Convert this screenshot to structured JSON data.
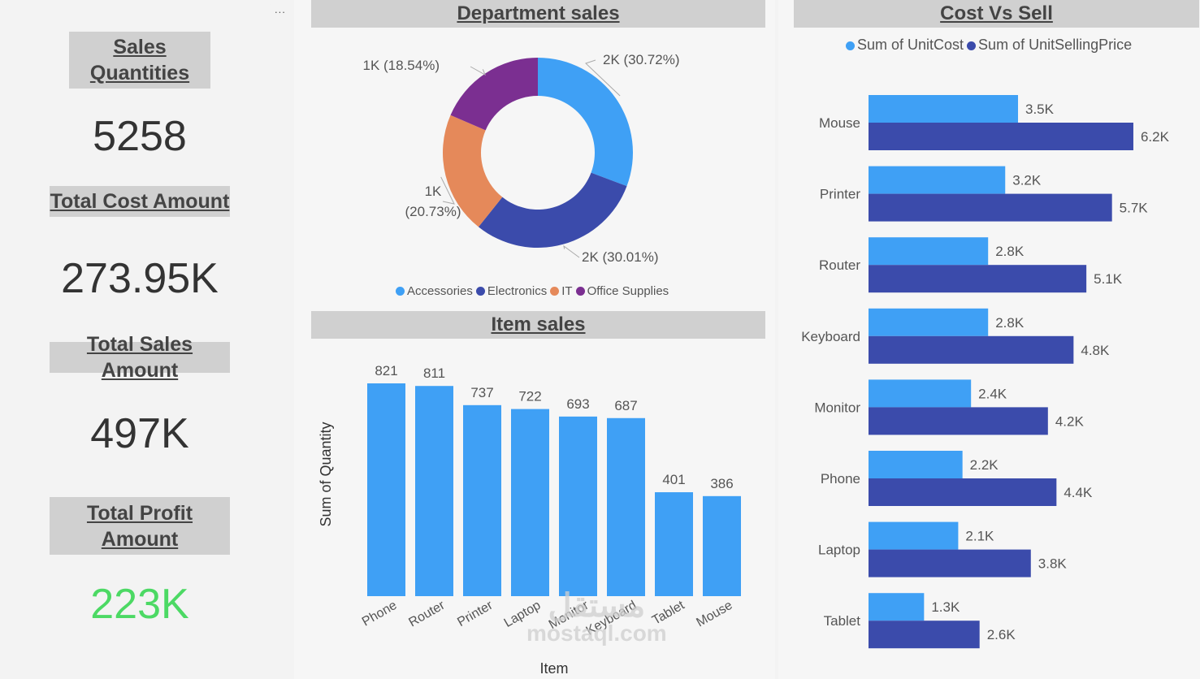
{
  "kpis": {
    "sales_quantities": {
      "label": "Sales Quantities",
      "value": "5258"
    },
    "total_cost": {
      "label": "Total Cost Amount",
      "value": "273.95K"
    },
    "total_sales": {
      "label": "Total Sales Amount",
      "value": "497K"
    },
    "total_profit": {
      "label": "Total Profit Amount",
      "value": "223K",
      "color": "#4cd964"
    }
  },
  "menu_dots": "...",
  "watermark": {
    "arabic": "مستقل",
    "latin": "mostaql.com"
  },
  "chart_data": [
    {
      "type": "pie",
      "title": "Department sales",
      "categories": [
        "Accessories",
        "Electronics",
        "IT",
        "Office Supplies"
      ],
      "values": [
        30.72,
        30.01,
        20.73,
        18.54
      ],
      "labels": [
        "2K (30.72%)",
        "2K (30.01%)",
        "1K (20.73%)",
        "1K (18.54%)"
      ],
      "label_lines": [
        [
          "2K (30.72%)"
        ],
        [
          "2K (30.01%)"
        ],
        [
          "1K",
          "(20.73%)"
        ],
        [
          "1K (18.54%)"
        ]
      ],
      "colors": [
        "#3fa0f5",
        "#3b4bab",
        "#e5895a",
        "#7b2f91"
      ],
      "legend_position": "bottom"
    },
    {
      "type": "bar",
      "title": "Item sales",
      "xlabel": "Item",
      "ylabel": "Sum of Quantity",
      "categories": [
        "Phone",
        "Router",
        "Printer",
        "Laptop",
        "Monitor",
        "Keyboard",
        "Tablet",
        "Mouse"
      ],
      "values": [
        821,
        811,
        737,
        722,
        693,
        687,
        401,
        386
      ],
      "color": "#3fa0f5",
      "ylim": [
        0,
        890
      ]
    },
    {
      "type": "bar",
      "orientation": "horizontal",
      "title": "Cost Vs Sell",
      "categories": [
        "Mouse",
        "Printer",
        "Router",
        "Keyboard",
        "Monitor",
        "Phone",
        "Laptop",
        "Tablet"
      ],
      "series": [
        {
          "name": "Sum of UnitCost",
          "color": "#3fa0f5",
          "values": [
            3.5,
            3.2,
            2.8,
            2.8,
            2.4,
            2.2,
            2.1,
            1.3
          ],
          "labels": [
            "3.5K",
            "3.2K",
            "2.8K",
            "2.8K",
            "2.4K",
            "2.2K",
            "2.1K",
            "1.3K"
          ]
        },
        {
          "name": "Sum of UnitSellingPrice",
          "color": "#3b4bab",
          "values": [
            6.2,
            5.7,
            5.1,
            4.8,
            4.2,
            4.4,
            3.8,
            2.6
          ],
          "labels": [
            "6.2K",
            "5.7K",
            "5.1K",
            "4.8K",
            "4.2K",
            "4.4K",
            "3.8K",
            "2.6K"
          ]
        }
      ],
      "unit": "K",
      "xlim": [
        0,
        6.6
      ],
      "legend_position": "top"
    }
  ]
}
